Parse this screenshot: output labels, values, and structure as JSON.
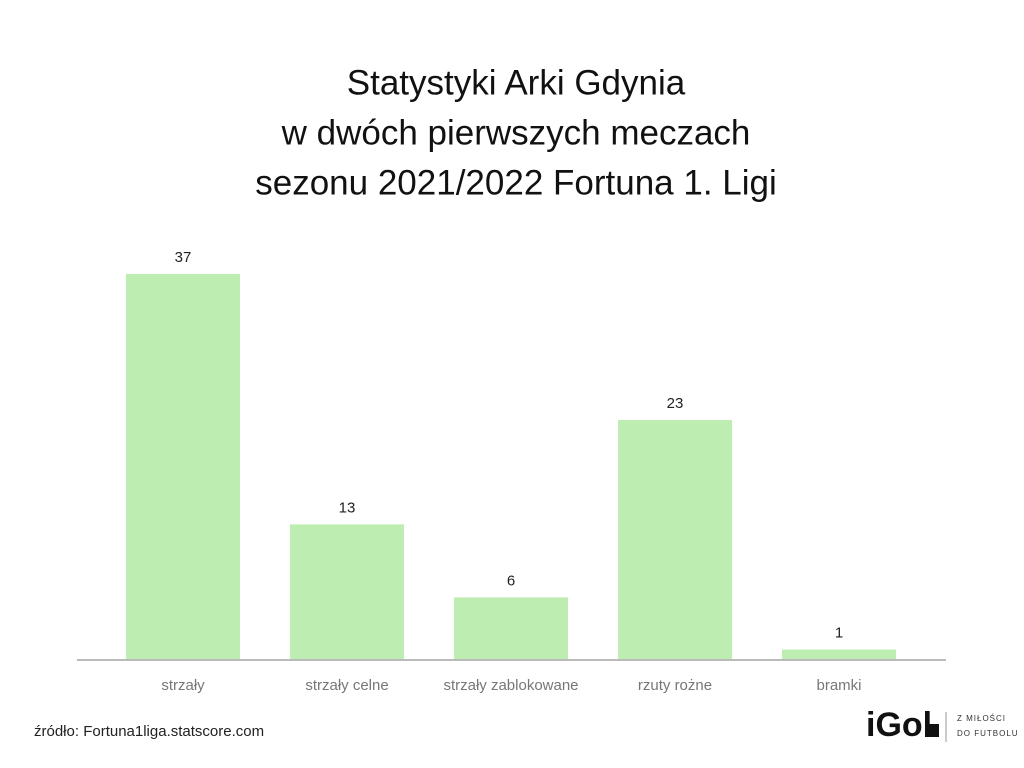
{
  "chart_data": {
    "type": "bar",
    "title": [
      "Statystyki Arki Gdynia",
      "w dwóch pierwszych meczach",
      "sezonu 2021/2022 Fortuna 1. Ligi"
    ],
    "categories": [
      "strzały",
      "strzały celne",
      "strzały zablokowane",
      "rzuty rożne",
      "bramki"
    ],
    "values": [
      37,
      13,
      6,
      23,
      1
    ],
    "color": "#bdedb0",
    "source": "źródło: Fortuna1liga.statscore.com",
    "logo": {
      "name": "iGol",
      "tagline": [
        "Z MIŁOŚCI",
        "DO FUTBOLU"
      ]
    }
  }
}
